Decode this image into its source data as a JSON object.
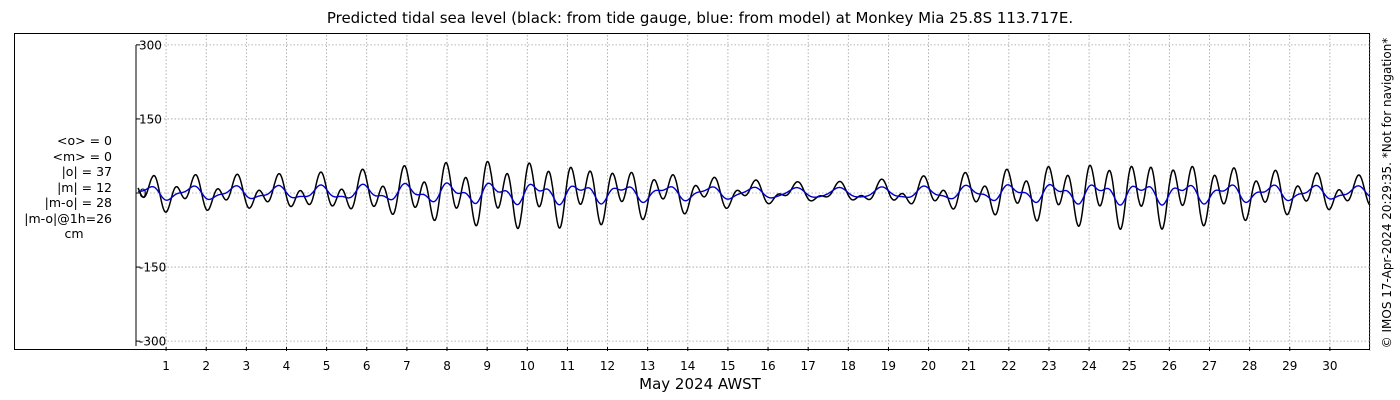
{
  "header": {
    "title": "Predicted tidal sea level (black: from tide gauge, blue: from model) at Monkey Mia 25.8S 113.717E."
  },
  "stats": {
    "mean_obs": "<o> = 0",
    "mean_model": "<m> = 0",
    "abs_obs": "|o| = 37",
    "abs_model": "|m| = 12",
    "abs_diff": "|m-o| = 28",
    "abs_diff_1h": "|m-o|@1h=26",
    "unit": "cm"
  },
  "footer": {
    "xlabel": "May 2024 AWST",
    "copyright": "© IMOS 17-Apr-2024 20:29:35. *Not for navigation*"
  },
  "colors": {
    "observed": "#000000",
    "model": "#0000cc",
    "grid": "#a0a0a0"
  },
  "chart_data": {
    "type": "line",
    "title": "Predicted tidal sea level (black: from tide gauge, blue: from model) at Monkey Mia 25.8S 113.717E.",
    "xlabel": "May 2024 AWST",
    "ylabel": "",
    "xlim": [
      0.25,
      31.0
    ],
    "ylim": [
      -320,
      320
    ],
    "yticks": [
      -300,
      -150,
      0,
      150,
      300
    ],
    "ytick_labels": [
      "-300",
      "-150",
      "0",
      "150",
      "300"
    ],
    "xticks": [
      1,
      2,
      3,
      4,
      5,
      6,
      7,
      8,
      9,
      10,
      11,
      12,
      13,
      14,
      15,
      16,
      17,
      18,
      19,
      20,
      21,
      22,
      23,
      24,
      25,
      26,
      27,
      28,
      29,
      30
    ],
    "xtick_labels": [
      "1",
      "2",
      "3",
      "4",
      "5",
      "6",
      "7",
      "8",
      "9",
      "10",
      "11",
      "12",
      "13",
      "14",
      "15",
      "16",
      "17",
      "18",
      "19",
      "20",
      "21",
      "22",
      "23",
      "24",
      "25",
      "26",
      "27",
      "28",
      "29",
      "30"
    ],
    "grid": true,
    "series": [
      {
        "color": "#000000",
        "tidal_model": {
          "semidiurnal_amplitude_cm": 42,
          "semidiurnal_period_days": 0.5175,
          "diurnal_amplitude_cm": 22,
          "diurnal_period_days": 1.0758,
          "spring_neap_period_days": 14.77,
          "spring_days": [
            9.8,
            25.2
          ],
          "neap_days": [
            17.2
          ]
        }
      },
      {
        "color": "#0000cc",
        "tidal_model": {
          "semidiurnal_amplitude_cm": 8,
          "semidiurnal_period_days": 0.5175,
          "diurnal_amplitude_cm": 14,
          "diurnal_period_days": 1.0758,
          "spring_neap_period_days": 14.77,
          "spring_days": [
            9.8,
            25.2
          ],
          "neap_days": [
            17.2
          ]
        }
      }
    ]
  }
}
